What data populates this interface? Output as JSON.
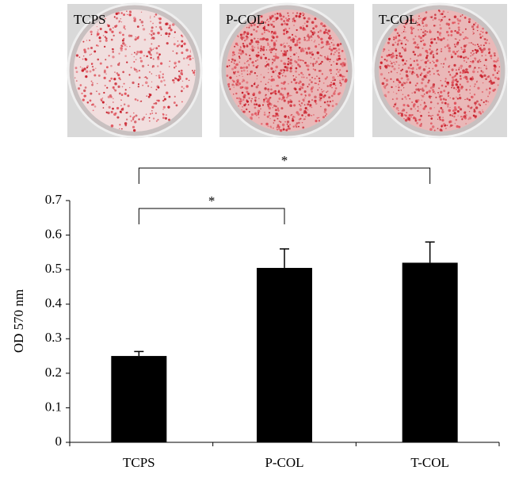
{
  "image_labels": [
    "TCPS",
    "P-COL",
    "T-COL"
  ],
  "chart_data": {
    "type": "bar",
    "y_label": "OD 570 nm",
    "categories": [
      "TCPS",
      "P-COL",
      "T-COL"
    ],
    "values": [
      0.25,
      0.505,
      0.52
    ],
    "errors": [
      0.013,
      0.055,
      0.06
    ],
    "color": "#000000",
    "ylim": [
      0,
      0.7
    ],
    "yticks": [
      0,
      0.1,
      0.2,
      0.3,
      0.4,
      0.5,
      0.6,
      0.7
    ],
    "annotations": [
      "*",
      "*"
    ]
  }
}
